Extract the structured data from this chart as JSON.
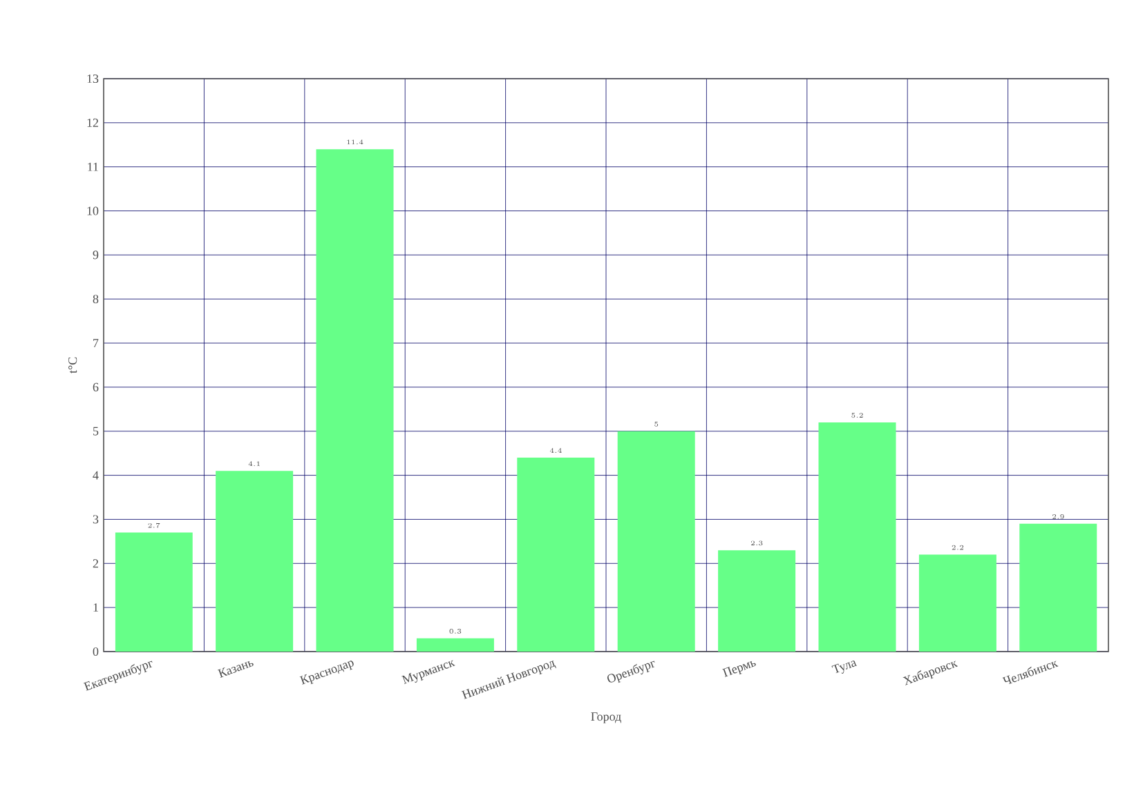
{
  "chart_data": {
    "type": "bar",
    "xlabel": "Город",
    "ylabel": "t°C",
    "categories": [
      "Екатеринбург",
      "Казань",
      "Краснодар",
      "Мурманск",
      "Нижний Новгород",
      "Оренбург",
      "Пермь",
      "Тула",
      "Хабаровск",
      "Челябинск"
    ],
    "values": [
      2.7,
      4.1,
      11.4,
      0.3,
      4.4,
      5,
      2.3,
      5.2,
      2.2,
      2.9
    ],
    "color": "#66ff88",
    "ylim": [
      0,
      13
    ],
    "yticks": [
      0,
      1,
      2,
      3,
      4,
      5,
      6,
      7,
      8,
      9,
      10,
      11,
      12,
      13
    ],
    "grid": true,
    "data_labels": true
  }
}
